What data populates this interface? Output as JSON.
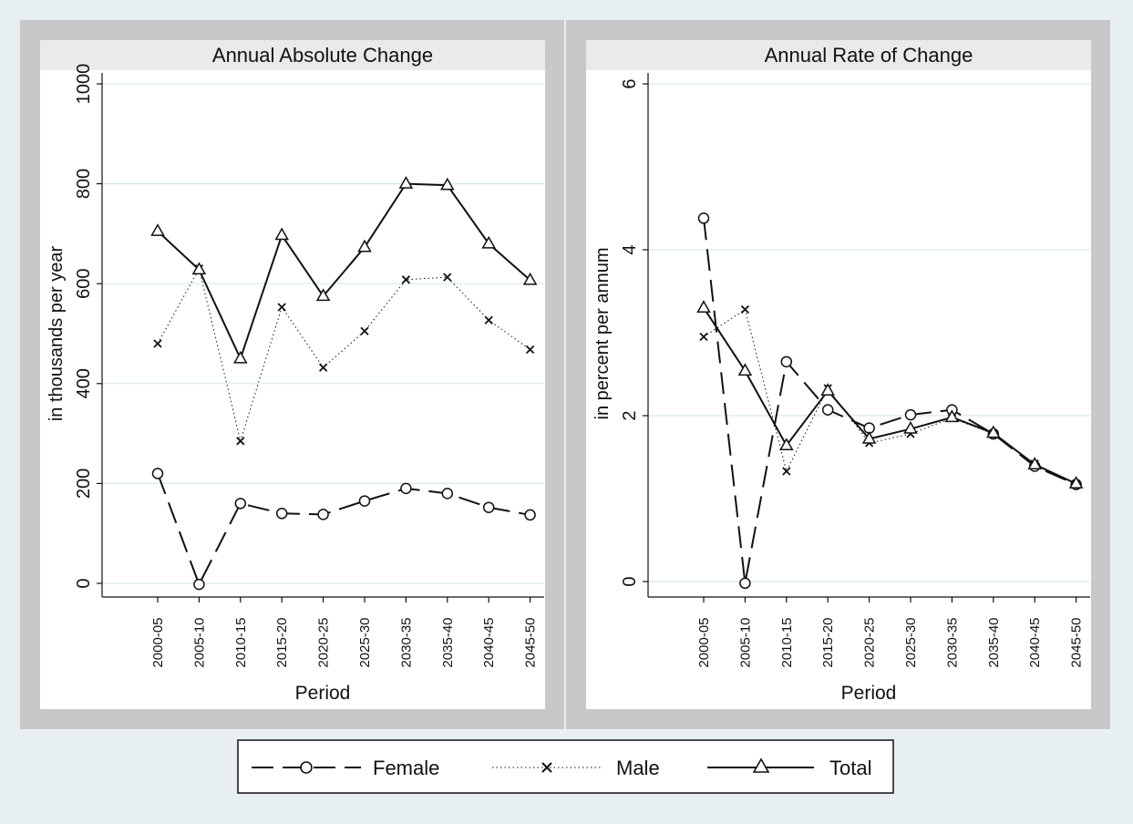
{
  "chart_data": [
    {
      "type": "line",
      "title": "Annual Absolute Change",
      "xlabel": "Period",
      "ylabel": "in thousands per year",
      "categories": [
        "2000-05",
        "2005-10",
        "2010-15",
        "2015-20",
        "2020-25",
        "2025-30",
        "2030-35",
        "2035-40",
        "2040-45",
        "2045-50"
      ],
      "ylim": [
        0,
        1000
      ],
      "yticks": [
        0,
        200,
        400,
        600,
        800,
        1000
      ],
      "series": [
        {
          "name": "Female",
          "values": [
            220,
            -2,
            160,
            140,
            138,
            165,
            190,
            180,
            152,
            137
          ]
        },
        {
          "name": "Male",
          "values": [
            480,
            630,
            285,
            553,
            432,
            505,
            608,
            613,
            527,
            468
          ]
        },
        {
          "name": "Total",
          "values": [
            705,
            628,
            450,
            697,
            575,
            673,
            800,
            797,
            680,
            607
          ]
        }
      ],
      "grid": true
    },
    {
      "type": "line",
      "title": "Annual Rate of Change",
      "xlabel": "Period",
      "ylabel": "in percent per annum",
      "categories": [
        "2000-05",
        "2005-10",
        "2010-15",
        "2015-20",
        "2020-25",
        "2025-30",
        "2030-35",
        "2035-40",
        "2040-45",
        "2045-50"
      ],
      "ylim": [
        0,
        6
      ],
      "yticks": [
        0,
        2,
        4,
        6
      ],
      "series": [
        {
          "name": "Female",
          "values": [
            4.38,
            -0.02,
            2.65,
            2.07,
            1.85,
            2.01,
            2.07,
            1.78,
            1.39,
            1.17
          ]
        },
        {
          "name": "Male",
          "values": [
            2.95,
            3.28,
            1.33,
            2.33,
            1.67,
            1.78,
            1.97,
            1.78,
            1.42,
            1.18
          ]
        },
        {
          "name": "Total",
          "values": [
            3.3,
            2.54,
            1.64,
            2.3,
            1.72,
            1.84,
            1.98,
            1.79,
            1.41,
            1.18
          ]
        }
      ],
      "grid": true
    }
  ],
  "legend": {
    "position": "bottom",
    "items": [
      {
        "label": "Female",
        "marker": "circle",
        "line": "dashed"
      },
      {
        "label": "Male",
        "marker": "cross",
        "line": "dotted"
      },
      {
        "label": "Total",
        "marker": "triangle",
        "line": "solid"
      }
    ]
  },
  "colors": {
    "background": "#e9f0f3",
    "panel_frame": "#c8c8c8",
    "plot_area": "#ffffff",
    "title_strip": "#eaeaea",
    "gridline": "#d6ebe7",
    "ink": "#111111"
  }
}
